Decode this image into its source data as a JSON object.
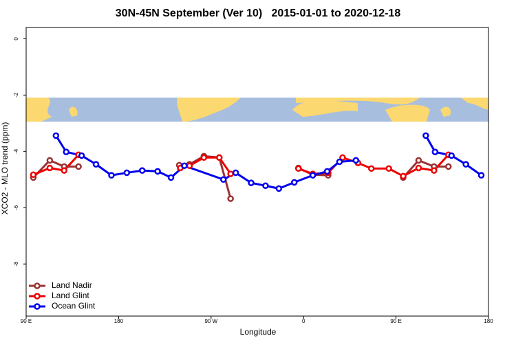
{
  "chart_data": {
    "type": "line",
    "title": "30N-45N September (Ver 10)   2015-01-01 to 2020-12-18",
    "x_label": "Longitude",
    "y_label": "XCO2 - MLO trend (ppm)",
    "xlim": [
      90,
      540
    ],
    "ylim": [
      -9.85,
      0.4
    ],
    "xticks": [
      {
        "value": 90,
        "label": "90 E"
      },
      {
        "value": 180,
        "label": "180"
      },
      {
        "value": 270,
        "label": "90 W"
      },
      {
        "value": 360,
        "label": "0"
      },
      {
        "value": 450,
        "label": "90 E"
      },
      {
        "value": 540,
        "label": "180"
      }
    ],
    "yticks": [
      0,
      -2,
      -4,
      -6,
      -8
    ],
    "legend": "bottom-left",
    "series": [
      {
        "name": "Land Nadir",
        "color": "#993333",
        "x": [
          97,
          113,
          127,
          141,
          null,
          239,
          249,
          263,
          278,
          289,
          null,
          355,
          369,
          384,
          null,
          457,
          472,
          487,
          501
        ],
        "values": [
          -4.93,
          -4.32,
          -4.54,
          -4.54,
          null,
          -4.49,
          -4.46,
          -4.17,
          -4.22,
          -5.68,
          null,
          -4.59,
          -4.83,
          -4.85,
          null,
          -4.93,
          -4.32,
          -4.54,
          -4.54
        ]
      },
      {
        "name": "Land Glint",
        "color": "#ee0000",
        "x": [
          97,
          113,
          127,
          141,
          null,
          240,
          249,
          263,
          278,
          289,
          null,
          355,
          369,
          384,
          398,
          413,
          426,
          443,
          457,
          472,
          487,
          501
        ],
        "values": [
          -4.83,
          -4.59,
          -4.68,
          -4.12,
          null,
          -4.59,
          -4.51,
          -4.22,
          -4.22,
          -4.8,
          null,
          -4.61,
          -4.8,
          -4.76,
          -4.22,
          -4.41,
          -4.61,
          -4.61,
          -4.88,
          -4.59,
          -4.68,
          -4.12
        ]
      },
      {
        "name": "Ocean Glint",
        "color": "#0000ee",
        "x": [
          119,
          129,
          144,
          158,
          173,
          188,
          203,
          218,
          231,
          244,
          282,
          294,
          309,
          323,
          336,
          351,
          369,
          383,
          395,
          411,
          null,
          479,
          488,
          504,
          518,
          533
        ],
        "values": [
          -3.44,
          -4.02,
          -4.15,
          -4.46,
          -4.85,
          -4.76,
          -4.68,
          -4.71,
          -4.93,
          -4.51,
          -5.0,
          -4.76,
          -5.12,
          -5.22,
          -5.32,
          -5.1,
          -4.85,
          -4.71,
          -4.37,
          -4.32,
          null,
          -3.44,
          -4.02,
          -4.15,
          -4.46,
          -4.85
        ]
      }
    ]
  }
}
